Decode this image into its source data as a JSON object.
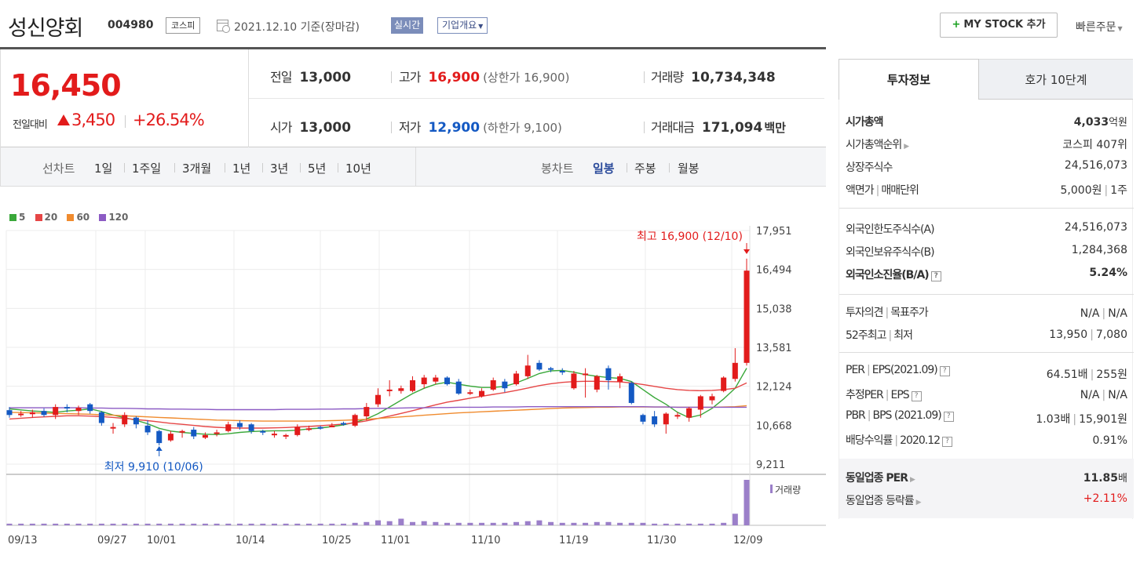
{
  "header": {
    "stock_name": "성신양회",
    "stock_code": "004980",
    "market": "코스피",
    "date_text": "2021.12.10 기준(장마감)",
    "realtime_label": "실시간",
    "corp_info_label": "기업개요",
    "mystock_label": "MY STOCK 추가",
    "quick_order_label": "빠른주문"
  },
  "quote": {
    "price": "16,450",
    "change_label": "전일대비",
    "change_value": "3,450",
    "change_pct": "+26.54%",
    "prev_close_label": "전일",
    "prev_close": "13,000",
    "high_label": "고가",
    "high": "16,900",
    "upper_limit": "(상한가 16,900)",
    "volume_label": "거래량",
    "volume": "10,734,348",
    "open_label": "시가",
    "open": "13,000",
    "low_label": "저가",
    "low": "12,900",
    "lower_limit": "(하한가 9,100)",
    "amount_label": "거래대금",
    "amount": "171,094",
    "amount_unit": "백만",
    "colors": {
      "up": "#e21b1b",
      "down": "#1459c3"
    }
  },
  "toolbar": {
    "line_chart_label": "선차트",
    "line_periods": [
      "1일",
      "1주일",
      "3개월",
      "1년",
      "3년",
      "5년",
      "10년"
    ],
    "candle_chart_label": "봉차트",
    "candle_periods": [
      "일봉",
      "주봉",
      "월봉"
    ],
    "active_candle": "일봉"
  },
  "chart_data": {
    "type": "candlestick",
    "legend": [
      {
        "name": "5",
        "color": "#3aa83a"
      },
      {
        "name": "20",
        "color": "#e64646"
      },
      {
        "name": "60",
        "color": "#f08b2e"
      },
      {
        "name": "120",
        "color": "#8c5bc4"
      }
    ],
    "y_ticks": [
      "17,951",
      "16,494",
      "15,038",
      "13,581",
      "12,124",
      "10,668",
      "9,211"
    ],
    "ylim": [
      9211,
      17951
    ],
    "x_ticks": [
      "09/13",
      "09/27",
      "10/01",
      "10/14",
      "10/25",
      "11/01",
      "11/10",
      "11/19",
      "11/30",
      "12/09"
    ],
    "max_annotation": "최고 16,900 (12/10)",
    "min_annotation": "최저 9,910 (10/06)",
    "volume_label": "거래량",
    "candles": [
      {
        "o": 11230,
        "c": 11050,
        "h": 11350,
        "l": 10950
      },
      {
        "o": 11050,
        "c": 11100,
        "h": 11200,
        "l": 10980
      },
      {
        "o": 11080,
        "c": 11150,
        "h": 11250,
        "l": 10950
      },
      {
        "o": 11200,
        "c": 11050,
        "h": 11300,
        "l": 10980
      },
      {
        "o": 11050,
        "c": 11350,
        "h": 11450,
        "l": 10900
      },
      {
        "o": 11350,
        "c": 11300,
        "h": 11450,
        "l": 11150
      },
      {
        "o": 11200,
        "c": 11320,
        "h": 11400,
        "l": 11050
      },
      {
        "o": 11450,
        "c": 11200,
        "h": 11500,
        "l": 11100
      },
      {
        "o": 11150,
        "c": 10750,
        "h": 11200,
        "l": 10650
      },
      {
        "o": 10600,
        "c": 10600,
        "h": 10750,
        "l": 10350
      },
      {
        "o": 10700,
        "c": 11050,
        "h": 11150,
        "l": 10600
      },
      {
        "o": 10950,
        "c": 10700,
        "h": 11000,
        "l": 10550
      },
      {
        "o": 10650,
        "c": 10400,
        "h": 10850,
        "l": 10300
      },
      {
        "o": 10450,
        "c": 10000,
        "h": 10500,
        "l": 9910
      },
      {
        "o": 10100,
        "c": 10350,
        "h": 10450,
        "l": 10050
      },
      {
        "o": 10400,
        "c": 10450,
        "h": 10500,
        "l": 10200
      },
      {
        "o": 10500,
        "c": 10250,
        "h": 10600,
        "l": 10150
      },
      {
        "o": 10200,
        "c": 10300,
        "h": 10400,
        "l": 10150
      },
      {
        "o": 10350,
        "c": 10400,
        "h": 10500,
        "l": 10250
      },
      {
        "o": 10450,
        "c": 10700,
        "h": 10800,
        "l": 10400
      },
      {
        "o": 10750,
        "c": 10600,
        "h": 10850,
        "l": 10500
      },
      {
        "o": 10700,
        "c": 10450,
        "h": 10750,
        "l": 10350
      },
      {
        "o": 10450,
        "c": 10400,
        "h": 10500,
        "l": 10300
      },
      {
        "o": 10350,
        "c": 10350,
        "h": 10450,
        "l": 10200
      },
      {
        "o": 10250,
        "c": 10300,
        "h": 10350,
        "l": 10150
      },
      {
        "o": 10300,
        "c": 10600,
        "h": 10700,
        "l": 10250
      },
      {
        "o": 10550,
        "c": 10550,
        "h": 10650,
        "l": 10450
      },
      {
        "o": 10600,
        "c": 10550,
        "h": 10650,
        "l": 10500
      },
      {
        "o": 10650,
        "c": 10650,
        "h": 10750,
        "l": 10600
      },
      {
        "o": 10750,
        "c": 10700,
        "h": 10800,
        "l": 10650
      },
      {
        "o": 10650,
        "c": 11050,
        "h": 11100,
        "l": 10600
      },
      {
        "o": 11000,
        "c": 11350,
        "h": 11500,
        "l": 10850
      },
      {
        "o": 11450,
        "c": 11800,
        "h": 12050,
        "l": 11350
      },
      {
        "o": 12000,
        "c": 12000,
        "h": 12350,
        "l": 11750
      },
      {
        "o": 11950,
        "c": 12050,
        "h": 12150,
        "l": 11850
      },
      {
        "o": 11950,
        "c": 12350,
        "h": 12500,
        "l": 11900
      },
      {
        "o": 12200,
        "c": 12450,
        "h": 12550,
        "l": 12050
      },
      {
        "o": 12300,
        "c": 12450,
        "h": 12550,
        "l": 12200
      },
      {
        "o": 12450,
        "c": 12200,
        "h": 12500,
        "l": 12150
      },
      {
        "o": 12300,
        "c": 11850,
        "h": 12400,
        "l": 11800
      },
      {
        "o": 11900,
        "c": 11900,
        "h": 12000,
        "l": 11800
      },
      {
        "o": 11750,
        "c": 11950,
        "h": 12050,
        "l": 11700
      },
      {
        "o": 12000,
        "c": 12350,
        "h": 12450,
        "l": 11950
      },
      {
        "o": 12300,
        "c": 12050,
        "h": 12400,
        "l": 11900
      },
      {
        "o": 12200,
        "c": 12600,
        "h": 12700,
        "l": 12150
      },
      {
        "o": 12500,
        "c": 12900,
        "h": 13300,
        "l": 12400
      },
      {
        "o": 13000,
        "c": 12750,
        "h": 13100,
        "l": 12700
      },
      {
        "o": 12800,
        "c": 12750,
        "h": 12850,
        "l": 12650
      },
      {
        "o": 12700,
        "c": 12650,
        "h": 12800,
        "l": 12550
      },
      {
        "o": 12050,
        "c": 12600,
        "h": 12700,
        "l": 12000
      },
      {
        "o": 12550,
        "c": 12600,
        "h": 12800,
        "l": 11700
      },
      {
        "o": 12000,
        "c": 12500,
        "h": 12550,
        "l": 11900
      },
      {
        "o": 12800,
        "c": 12350,
        "h": 12900,
        "l": 12000
      },
      {
        "o": 12300,
        "c": 12500,
        "h": 12600,
        "l": 12050
      },
      {
        "o": 12250,
        "c": 11500,
        "h": 12300,
        "l": 11450
      },
      {
        "o": 11050,
        "c": 10800,
        "h": 11100,
        "l": 10700
      },
      {
        "o": 11000,
        "c": 10700,
        "h": 11200,
        "l": 10600
      },
      {
        "o": 10700,
        "c": 11100,
        "h": 11150,
        "l": 10350
      },
      {
        "o": 11050,
        "c": 11050,
        "h": 11150,
        "l": 10900
      },
      {
        "o": 10950,
        "c": 11300,
        "h": 11350,
        "l": 10800
      },
      {
        "o": 11250,
        "c": 11750,
        "h": 11800,
        "l": 10950
      },
      {
        "o": 11600,
        "c": 11750,
        "h": 11850,
        "l": 11450
      },
      {
        "o": 11950,
        "c": 12450,
        "h": 12500,
        "l": 11900
      },
      {
        "o": 12400,
        "c": 13000,
        "h": 13550,
        "l": 12300
      },
      {
        "o": 13000,
        "c": 16450,
        "h": 16900,
        "l": 12900
      }
    ],
    "ma5": [
      11280,
      11240,
      11200,
      11180,
      11150,
      11200,
      11230,
      11280,
      11180,
      11050,
      10950,
      10850,
      10720,
      10550,
      10450,
      10400,
      10360,
      10330,
      10320,
      10350,
      10400,
      10430,
      10450,
      10460,
      10460,
      10480,
      10530,
      10560,
      10620,
      10680,
      10780,
      10900,
      11100,
      11350,
      11600,
      11850,
      12050,
      12200,
      12280,
      12200,
      12130,
      12080,
      12080,
      12120,
      12250,
      12420,
      12600,
      12700,
      12720,
      12650,
      12560,
      12500,
      12450,
      12420,
      12300,
      12000,
      11700,
      11450,
      11150,
      10950,
      11050,
      11300,
      11650,
      12050,
      12800
    ],
    "ma20": [
      10900,
      10930,
      10960,
      10980,
      11000,
      11020,
      11020,
      11010,
      10990,
      10960,
      10920,
      10880,
      10840,
      10790,
      10740,
      10700,
      10660,
      10620,
      10590,
      10570,
      10560,
      10560,
      10560,
      10570,
      10580,
      10600,
      10620,
      10650,
      10680,
      10710,
      10760,
      10830,
      10920,
      11010,
      11110,
      11210,
      11320,
      11430,
      11530,
      11600,
      11680,
      11750,
      11820,
      11890,
      11970,
      12060,
      12150,
      12220,
      12270,
      12300,
      12310,
      12310,
      12300,
      12290,
      12250,
      12190,
      12120,
      12050,
      12000,
      11970,
      11960,
      11970,
      12000,
      12050,
      12250
    ],
    "ma60": [
      11150,
      11140,
      11130,
      11120,
      11110,
      11100,
      11090,
      11080,
      11060,
      11040,
      11020,
      11000,
      10980,
      10960,
      10940,
      10920,
      10900,
      10880,
      10860,
      10850,
      10840,
      10830,
      10820,
      10820,
      10820,
      10820,
      10820,
      10830,
      10840,
      10850,
      10870,
      10890,
      10920,
      10950,
      10980,
      11010,
      11040,
      11070,
      11100,
      11130,
      11150,
      11170,
      11190,
      11210,
      11230,
      11250,
      11270,
      11290,
      11310,
      11320,
      11330,
      11340,
      11340,
      11350,
      11350,
      11350,
      11350,
      11350,
      11340,
      11340,
      11340,
      11340,
      11350,
      11360,
      11400
    ],
    "ma120": [
      11320,
      11320,
      11320,
      11320,
      11320,
      11320,
      11320,
      11310,
      11310,
      11300,
      11300,
      11290,
      11280,
      11280,
      11270,
      11270,
      11260,
      11260,
      11250,
      11250,
      11250,
      11250,
      11250,
      11250,
      11260,
      11260,
      11260,
      11270,
      11270,
      11280,
      11280,
      11290,
      11300,
      11300,
      11310,
      11320,
      11320,
      11330,
      11330,
      11340,
      11340,
      11340,
      11350,
      11350,
      11350,
      11360,
      11360,
      11360,
      11360,
      11360,
      11360,
      11360,
      11360,
      11360,
      11360,
      11360,
      11350,
      11350,
      11340,
      11340,
      11340,
      11340,
      11340,
      11340,
      11340
    ],
    "volumes": [
      2,
      2,
      2,
      2,
      2,
      2,
      2,
      2,
      2,
      2,
      2,
      2,
      2,
      2,
      2,
      2,
      2,
      2,
      2,
      2,
      2,
      2,
      2,
      2,
      2,
      2,
      2,
      2,
      2,
      2,
      3,
      4,
      6,
      5,
      8,
      4,
      5,
      4,
      3,
      3,
      3,
      3,
      3,
      3,
      4,
      5,
      6,
      4,
      3,
      3,
      3,
      4,
      4,
      3,
      3,
      3,
      2,
      2,
      2,
      2,
      2,
      2,
      3,
      14,
      55
    ]
  },
  "invest_info": {
    "tab_active": "투자정보",
    "tab_other": "호가 10단계",
    "market_cap_label": "시가총액",
    "market_cap": "4,033",
    "market_cap_unit": "억원",
    "market_cap_rank_label": "시가총액순위",
    "market_cap_rank": "코스피 407위",
    "shares_label": "상장주식수",
    "shares": "24,516,073",
    "par_label": "액면가",
    "trade_unit_label": "매매단위",
    "par_value": "5,000원",
    "trade_unit": "1주",
    "foreign_limit_label": "외국인한도주식수(A)",
    "foreign_limit": "24,516,073",
    "foreign_hold_label": "외국인보유주식수(B)",
    "foreign_hold": "1,284,368",
    "foreign_ratio_label": "외국인소진율(B/A)",
    "foreign_ratio": "5.24%",
    "opinion_label": "투자의견",
    "target_label": "목표주가",
    "opinion": "N/A",
    "target": "N/A",
    "w52_high_label": "52주최고",
    "w52_low_label": "최저",
    "w52_high": "13,950",
    "w52_low": "7,080",
    "per_label": "PER",
    "eps_label": "EPS(2021.09)",
    "per": "64.51배",
    "eps": "255원",
    "est_per_label": "추정PER",
    "est_eps_label": "EPS",
    "est_per": "N/A",
    "est_eps": "N/A",
    "pbr_label": "PBR",
    "bps_label": "BPS (2021.09)",
    "pbr": "1.03배",
    "bps": "15,901원",
    "dividend_label": "배당수익률",
    "dividend_year": "2020.12",
    "dividend": "0.91%",
    "sector_per_label": "동일업종 PER",
    "sector_per": "11.85",
    "sector_per_unit": "배",
    "sector_change_label": "동일업종 등락률",
    "sector_change": "+2.11%"
  }
}
